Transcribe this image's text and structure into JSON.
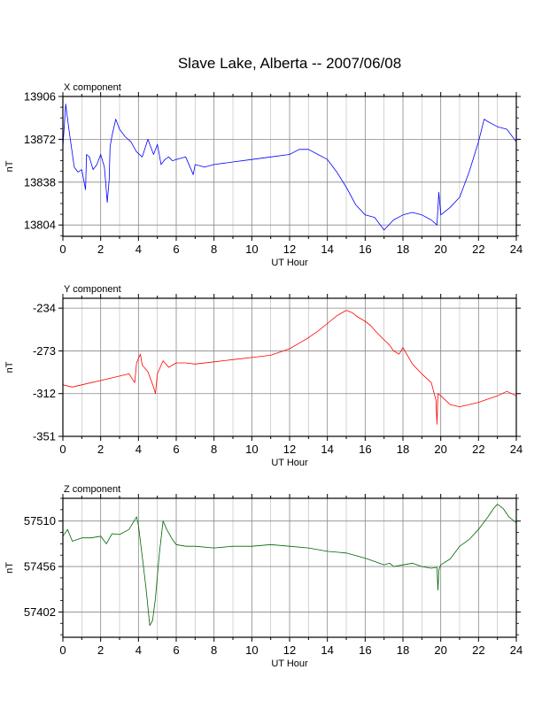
{
  "title": "Slave Lake, Alberta -- 2007/06/08",
  "chart_data": [
    {
      "type": "line",
      "title": "X component",
      "xlabel": "UT Hour",
      "ylabel": "nT",
      "xlim": [
        0,
        24
      ],
      "ylim": [
        13795,
        13906
      ],
      "xticks": [
        0,
        2,
        4,
        6,
        8,
        10,
        12,
        14,
        16,
        18,
        20,
        22,
        24
      ],
      "yticks": [
        13804,
        13838,
        13872,
        13906
      ],
      "grid": true,
      "color": "#0000ff",
      "series": [
        {
          "x": [
            0,
            0.15,
            0.3,
            0.45,
            0.6,
            0.8,
            1.0,
            1.2,
            1.25,
            1.4,
            1.6,
            1.8,
            2.0,
            2.2,
            2.35,
            2.45,
            2.5,
            2.6,
            2.8,
            3.0,
            3.3,
            3.6,
            3.9,
            4.2,
            4.5,
            4.8,
            5.0,
            5.2,
            5.4,
            5.6,
            5.8,
            6.0,
            6.5,
            6.9,
            7.0,
            7.5,
            8.0,
            9.0,
            10.0,
            11.0,
            12.0,
            12.5,
            13.0,
            13.5,
            14.0,
            14.5,
            15.0,
            15.5,
            16.0,
            16.5,
            17.0,
            17.5,
            18.0,
            18.5,
            19.0,
            19.5,
            19.8,
            19.9,
            20.0,
            20.5,
            21.0,
            21.5,
            22.0,
            22.3,
            22.5,
            23.0,
            23.5,
            24.0
          ],
          "y": [
            13866,
            13900,
            13882,
            13866,
            13850,
            13846,
            13848,
            13832,
            13860,
            13858,
            13848,
            13852,
            13860,
            13850,
            13822,
            13840,
            13866,
            13875,
            13888,
            13880,
            13874,
            13870,
            13862,
            13858,
            13872,
            13860,
            13868,
            13852,
            13856,
            13858,
            13855,
            13856,
            13858,
            13844,
            13852,
            13850,
            13852,
            13854,
            13856,
            13858,
            13860,
            13864,
            13864,
            13860,
            13856,
            13846,
            13834,
            13820,
            13812,
            13810,
            13800,
            13808,
            13812,
            13814,
            13812,
            13808,
            13804,
            13830,
            13812,
            13818,
            13826,
            13846,
            13870,
            13888,
            13886,
            13882,
            13880,
            13870
          ]
        }
      ]
    },
    {
      "type": "line",
      "title": "Y component",
      "xlabel": "UT Hour",
      "ylabel": "nT",
      "xlim": [
        0,
        24
      ],
      "ylim": [
        -351,
        -225
      ],
      "xticks": [
        0,
        2,
        4,
        6,
        8,
        10,
        12,
        14,
        16,
        18,
        20,
        22,
        24
      ],
      "yticks": [
        -234,
        -273,
        -312,
        -351
      ],
      "grid": true,
      "color": "#ff0000",
      "series": [
        {
          "x": [
            0,
            0.5,
            1.0,
            1.5,
            2.0,
            2.5,
            3.0,
            3.5,
            3.8,
            3.9,
            4.0,
            4.1,
            4.2,
            4.5,
            4.8,
            4.9,
            5.0,
            5.3,
            5.6,
            6.0,
            6.5,
            7.0,
            8.0,
            9.0,
            10.0,
            11.0,
            12.0,
            12.5,
            13.0,
            13.5,
            14.0,
            14.5,
            15.0,
            15.3,
            15.6,
            16.0,
            16.3,
            16.6,
            17.0,
            17.3,
            17.5,
            17.8,
            18.0,
            18.5,
            19.0,
            19.5,
            19.75,
            19.8,
            19.85,
            20.0,
            20.5,
            21.0,
            21.5,
            22.0,
            22.5,
            23.0,
            23.5,
            24.0
          ],
          "y": [
            -304,
            -306,
            -304,
            -302,
            -300,
            -298,
            -296,
            -294,
            -302,
            -284,
            -280,
            -276,
            -286,
            -292,
            -306,
            -312,
            -294,
            -282,
            -288,
            -284,
            -284,
            -285,
            -283,
            -281,
            -279,
            -277,
            -271,
            -266,
            -261,
            -255,
            -248,
            -241,
            -236,
            -238,
            -242,
            -246,
            -250,
            -256,
            -263,
            -268,
            -273,
            -276,
            -270,
            -285,
            -294,
            -302,
            -318,
            -340,
            -312,
            -314,
            -322,
            -324,
            -322,
            -320,
            -317,
            -314,
            -310,
            -314
          ]
        }
      ]
    },
    {
      "type": "line",
      "title": "Z component",
      "xlabel": "UT Hour",
      "ylabel": "nT",
      "xlim": [
        0,
        24
      ],
      "ylim": [
        57372,
        57537
      ],
      "xticks": [
        0,
        2,
        4,
        6,
        8,
        10,
        12,
        14,
        16,
        18,
        20,
        22,
        24
      ],
      "yticks": [
        57402,
        57456,
        57510
      ],
      "grid": true,
      "color": "#006400",
      "series": [
        {
          "x": [
            0,
            0.25,
            0.5,
            1.0,
            1.5,
            2.0,
            2.3,
            2.6,
            3.0,
            3.5,
            3.9,
            4.0,
            4.2,
            4.4,
            4.6,
            4.75,
            4.9,
            5.1,
            5.3,
            5.5,
            5.8,
            6.0,
            6.5,
            7.0,
            8.0,
            9.0,
            10.0,
            11.0,
            12.0,
            13.0,
            14.0,
            15.0,
            16.0,
            16.5,
            17.0,
            17.3,
            17.5,
            18.0,
            18.5,
            19.0,
            19.5,
            19.8,
            19.85,
            19.9,
            20.0,
            20.5,
            21.0,
            21.5,
            22.0,
            22.5,
            22.8,
            23.0,
            23.3,
            23.6,
            24.0
          ],
          "y": [
            57492,
            57500,
            57486,
            57490,
            57490,
            57492,
            57483,
            57495,
            57494,
            57500,
            57515,
            57505,
            57468,
            57430,
            57386,
            57392,
            57418,
            57470,
            57510,
            57500,
            57488,
            57482,
            57480,
            57480,
            57478,
            57480,
            57480,
            57482,
            57480,
            57478,
            57474,
            57472,
            57466,
            57462,
            57458,
            57460,
            57456,
            57458,
            57460,
            57456,
            57454,
            57455,
            57428,
            57452,
            57458,
            57465,
            57480,
            57488,
            57500,
            57515,
            57525,
            57530,
            57525,
            57515,
            57508
          ]
        }
      ]
    }
  ]
}
